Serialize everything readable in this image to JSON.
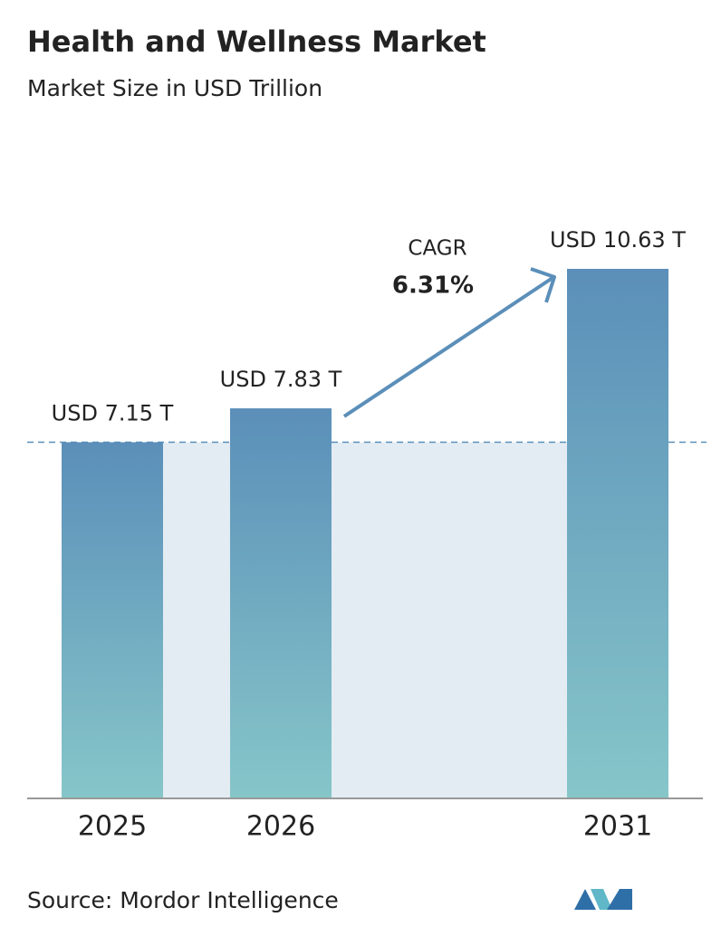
{
  "chart_data": {
    "type": "bar",
    "title": "Health and Wellness Market",
    "subtitle": "Market Size in USD Trillion",
    "categories": [
      "2025",
      "2026",
      "2031"
    ],
    "values": [
      7.15,
      7.83,
      10.63
    ],
    "value_labels": [
      "USD 7.15 T",
      "USD 7.83 T",
      "USD 10.63 T"
    ],
    "color": "#5b8fb9",
    "annotation": {
      "label": "CAGR",
      "value_label": "6.31%"
    },
    "source": "Source: Mordor Intelligence"
  }
}
